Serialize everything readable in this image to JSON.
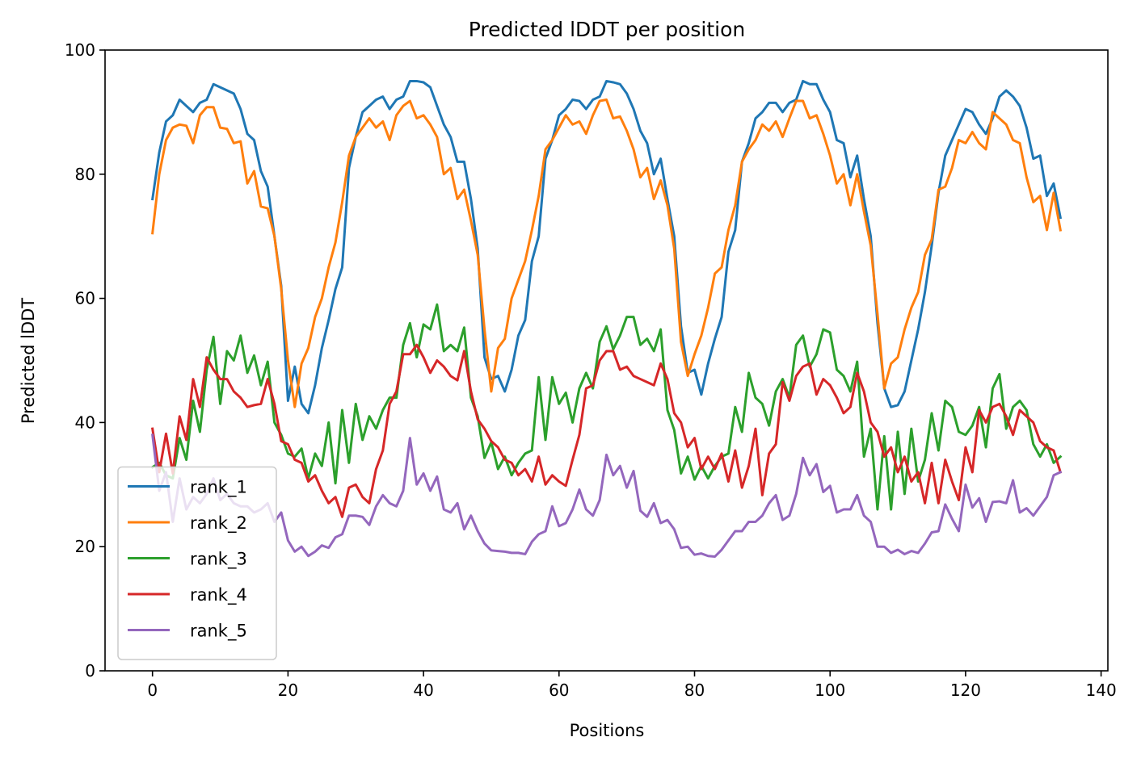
{
  "chart_data": {
    "type": "line",
    "title": "Predicted lDDT per position",
    "xlabel": "Positions",
    "ylabel": "Predicted lDDT",
    "xlim": [
      -7,
      141
    ],
    "ylim": [
      0,
      100
    ],
    "xticks": [
      0,
      20,
      40,
      60,
      80,
      100,
      120,
      140
    ],
    "yticks": [
      0,
      20,
      40,
      60,
      80,
      100
    ],
    "grid": false,
    "legend_position": "lower-left",
    "series": [
      {
        "name": "rank_1",
        "color": "#1f77b4",
        "values": [
          76.0,
          83.5,
          88.5,
          89.5,
          92.0,
          91.0,
          90.0,
          91.5,
          92.0,
          94.5,
          94.0,
          93.5,
          93.0,
          90.5,
          86.5,
          85.5,
          80.5,
          78.0,
          70.0,
          62.0,
          43.5,
          49.0,
          43.0,
          41.5,
          46.0,
          52.0,
          56.5,
          61.5,
          65.0,
          81.0,
          86.0,
          90.0,
          91.0,
          92.0,
          92.5,
          90.5,
          92.0,
          92.5,
          95.0,
          95.0,
          94.8,
          94.0,
          91.0,
          88.0,
          86.0,
          82.0,
          82.0,
          76.0,
          68.0,
          50.5,
          47.0,
          47.5,
          45.0,
          48.5,
          54.0,
          56.5,
          66.0,
          70.0,
          82.5,
          85.5,
          89.5,
          90.5,
          92.0,
          91.8,
          90.5,
          92.0,
          92.5,
          95.0,
          94.8,
          94.5,
          93.0,
          90.5,
          87.0,
          85.0,
          80.0,
          82.5,
          76.0,
          70.0,
          55.5,
          48.0,
          48.5,
          44.5,
          49.5,
          53.5,
          57.0,
          67.5,
          71.0,
          82.0,
          85.0,
          89.0,
          90.0,
          91.5,
          91.5,
          90.0,
          91.5,
          92.0,
          95.0,
          94.5,
          94.5,
          92.0,
          90.0,
          85.5,
          85.0,
          79.5,
          83.0,
          76.0,
          70.0,
          56.0,
          45.5,
          42.5,
          42.8,
          45.0,
          50.0,
          55.0,
          61.0,
          68.5,
          77.0,
          83.0,
          85.5,
          88.0,
          90.5,
          90.0,
          88.0,
          86.5,
          89.0,
          92.5,
          93.5,
          92.5,
          91.0,
          87.5,
          82.5,
          83.0,
          76.5,
          78.5,
          73.0
        ]
      },
      {
        "name": "rank_2",
        "color": "#ff7f0e",
        "values": [
          70.5,
          80.0,
          85.5,
          87.5,
          88.0,
          87.8,
          85.0,
          89.5,
          90.8,
          90.8,
          87.5,
          87.3,
          85.0,
          85.3,
          78.5,
          80.5,
          74.8,
          74.5,
          70.0,
          61.5,
          50.0,
          42.5,
          49.5,
          52.0,
          57.0,
          60.0,
          65.0,
          69.0,
          75.5,
          83.0,
          86.0,
          87.5,
          89.0,
          87.5,
          88.5,
          85.5,
          89.5,
          91.0,
          91.8,
          89.0,
          89.5,
          88.0,
          86.0,
          80.0,
          81.0,
          76.0,
          77.5,
          72.5,
          67.0,
          55.0,
          45.0,
          52.0,
          53.5,
          60.0,
          63.0,
          66.0,
          71.0,
          76.5,
          84.0,
          85.5,
          87.5,
          89.5,
          88.0,
          88.5,
          86.5,
          89.5,
          91.8,
          92.0,
          89.0,
          89.3,
          87.0,
          84.0,
          79.5,
          81.0,
          76.0,
          79.0,
          75.0,
          68.0,
          53.0,
          47.5,
          51.0,
          54.0,
          58.5,
          64.0,
          65.0,
          71.0,
          75.0,
          82.0,
          84.0,
          85.5,
          88.0,
          87.0,
          88.5,
          86.0,
          89.0,
          91.8,
          91.8,
          89.0,
          89.5,
          86.5,
          83.0,
          78.5,
          80.0,
          75.0,
          80.0,
          74.0,
          68.5,
          57.5,
          45.5,
          49.5,
          50.5,
          55.0,
          58.5,
          61.0,
          67.0,
          69.5,
          77.5,
          78.0,
          81.0,
          85.5,
          85.0,
          86.8,
          85.0,
          84.0,
          90.0,
          89.0,
          88.0,
          85.5,
          85.0,
          79.5,
          75.5,
          76.5,
          71.0,
          77.0,
          71.0
        ]
      },
      {
        "name": "rank_3",
        "color": "#2ca02c",
        "values": [
          32.8,
          33.5,
          31.5,
          31.0,
          37.5,
          34.0,
          43.5,
          38.5,
          48.5,
          53.8,
          43.0,
          51.5,
          50.0,
          54.0,
          48.0,
          50.8,
          46.0,
          49.8,
          40.0,
          38.0,
          35.0,
          34.5,
          35.8,
          31.0,
          35.0,
          33.0,
          40.0,
          30.2,
          42.0,
          33.5,
          43.0,
          37.2,
          41.0,
          39.0,
          42.0,
          44.0,
          44.0,
          52.5,
          56.0,
          50.5,
          55.8,
          55.0,
          59.0,
          51.5,
          52.5,
          51.5,
          55.3,
          44.0,
          41.0,
          34.3,
          36.8,
          32.5,
          34.5,
          31.5,
          33.5,
          35.0,
          35.5,
          47.3,
          37.2,
          47.3,
          43.0,
          44.8,
          40.0,
          45.5,
          48.0,
          45.5,
          53.0,
          55.5,
          51.8,
          54.0,
          57.0,
          57.0,
          52.5,
          53.5,
          51.5,
          55.0,
          42.0,
          38.8,
          31.8,
          34.5,
          30.8,
          33.0,
          31.0,
          33.0,
          34.5,
          35.0,
          42.5,
          38.5,
          48.0,
          44.0,
          43.0,
          39.5,
          45.0,
          47.0,
          44.0,
          52.5,
          54.0,
          49.0,
          51.0,
          55.0,
          54.5,
          48.5,
          47.5,
          45.0,
          49.8,
          34.5,
          39.0,
          26.0,
          37.8,
          26.0,
          38.5,
          28.5,
          39.0,
          30.5,
          34.0,
          41.5,
          35.5,
          43.5,
          42.5,
          38.5,
          38.0,
          39.5,
          42.5,
          36.0,
          45.5,
          47.8,
          39.0,
          42.5,
          43.5,
          42.0,
          36.5,
          34.5,
          36.5,
          33.5,
          34.5
        ]
      },
      {
        "name": "rank_4",
        "color": "#d62728",
        "values": [
          39.0,
          32.0,
          38.2,
          31.8,
          41.0,
          37.2,
          47.0,
          42.5,
          50.5,
          48.5,
          47.0,
          47.0,
          45.0,
          44.0,
          42.5,
          42.8,
          43.0,
          47.0,
          43.0,
          37.0,
          36.5,
          34.0,
          33.5,
          30.5,
          31.5,
          29.0,
          27.0,
          28.0,
          24.8,
          29.5,
          30.0,
          28.0,
          27.0,
          32.5,
          35.5,
          43.0,
          45.0,
          51.0,
          51.0,
          52.5,
          50.5,
          48.0,
          50.0,
          49.0,
          47.5,
          46.8,
          51.5,
          45.0,
          40.5,
          39.0,
          37.0,
          36.0,
          34.0,
          33.5,
          31.5,
          32.5,
          30.5,
          34.5,
          30.0,
          31.5,
          30.5,
          29.8,
          34.0,
          38.0,
          45.5,
          46.0,
          50.0,
          51.5,
          51.5,
          48.5,
          49.0,
          47.5,
          47.0,
          46.5,
          46.0,
          49.5,
          47.0,
          41.5,
          40.0,
          36.0,
          37.5,
          32.5,
          34.5,
          32.5,
          35.0,
          30.5,
          35.5,
          29.5,
          33.0,
          39.0,
          28.3,
          35.0,
          36.5,
          46.5,
          43.5,
          47.5,
          49.0,
          49.5,
          44.5,
          47.0,
          46.0,
          44.0,
          41.5,
          42.5,
          48.0,
          45.0,
          40.0,
          38.5,
          34.5,
          36.0,
          32.0,
          34.5,
          30.5,
          32.0,
          27.0,
          33.5,
          27.0,
          34.0,
          30.5,
          27.5,
          36.0,
          32.0,
          42.0,
          40.0,
          42.5,
          43.0,
          41.0,
          38.0,
          42.0,
          41.0,
          40.0,
          37.0,
          36.0,
          35.5,
          32.0
        ]
      },
      {
        "name": "rank_5",
        "color": "#9467bd",
        "values": [
          38.0,
          29.0,
          32.0,
          24.0,
          31.0,
          26.0,
          28.0,
          27.0,
          28.5,
          31.0,
          27.5,
          28.5,
          27.0,
          26.5,
          26.5,
          25.5,
          26.0,
          27.0,
          24.0,
          25.5,
          21.0,
          19.2,
          20.0,
          18.5,
          19.2,
          20.2,
          19.8,
          21.5,
          22.0,
          25.0,
          25.0,
          24.8,
          23.5,
          26.5,
          28.3,
          27.0,
          26.5,
          29.0,
          37.5,
          30.0,
          31.8,
          29.0,
          31.3,
          26.0,
          25.5,
          27.0,
          22.8,
          25.0,
          22.5,
          20.5,
          19.4,
          19.3,
          19.2,
          19.0,
          19.0,
          18.8,
          20.8,
          22.0,
          22.5,
          26.5,
          23.3,
          23.8,
          26.0,
          29.2,
          26.0,
          25.0,
          27.5,
          34.8,
          31.5,
          33.0,
          29.5,
          32.2,
          25.8,
          24.8,
          27.0,
          23.8,
          24.3,
          22.8,
          19.8,
          20.0,
          18.7,
          18.9,
          18.5,
          18.4,
          19.5,
          21.0,
          22.5,
          22.5,
          24.0,
          24.0,
          25.0,
          27.0,
          28.3,
          24.3,
          25.0,
          28.5,
          34.3,
          31.5,
          33.3,
          28.8,
          29.8,
          25.5,
          26.0,
          26.0,
          28.3,
          25.0,
          24.0,
          20.0,
          20.0,
          19.0,
          19.5,
          18.8,
          19.3,
          19.0,
          20.5,
          22.3,
          22.5,
          26.8,
          24.5,
          22.5,
          30.0,
          26.3,
          27.8,
          24.0,
          27.2,
          27.3,
          27.0,
          30.7,
          25.5,
          26.2,
          25.0,
          26.5,
          28.0,
          31.5,
          32.0
        ]
      }
    ]
  }
}
